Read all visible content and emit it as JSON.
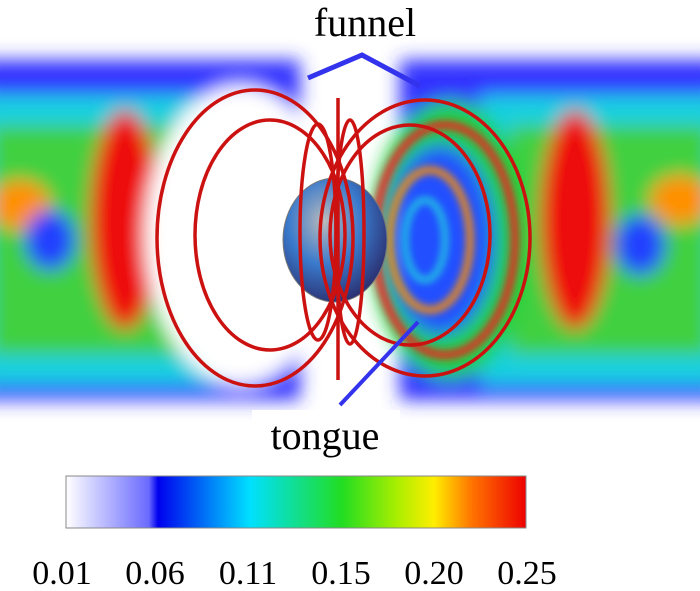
{
  "annotations": {
    "top": "funnel",
    "bottom": "tongue"
  },
  "colorbar": {
    "tick_labels": [
      "0.01",
      "0.06",
      "0.11",
      "0.15",
      "0.20",
      "0.25"
    ]
  }
}
